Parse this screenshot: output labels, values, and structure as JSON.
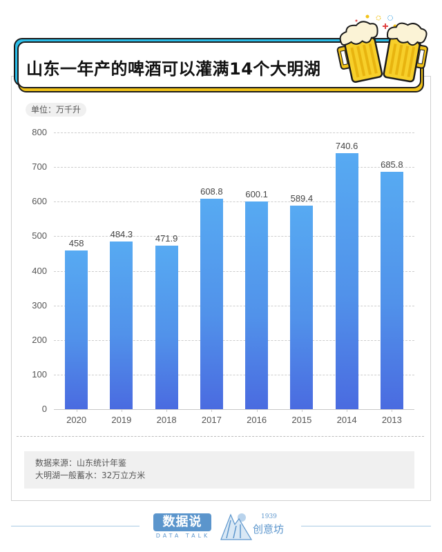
{
  "header": {
    "title": "山东一年产的啤酒可以灌满14个大明湖",
    "decoration": "beer-mugs-cheers-icon"
  },
  "unit_label": "单位：万千升",
  "colors": {
    "bar_top": "#57aaf2",
    "bar_bottom": "#4a6be0",
    "banner_cyan": "#2bbde8",
    "banner_yellow": "#f2c318",
    "logo_blue": "#5b95cc"
  },
  "chart_data": {
    "type": "bar",
    "title": "山东一年产的啤酒可以灌满14个大明湖",
    "xlabel": "",
    "ylabel": "单位：万千升",
    "categories": [
      "2020",
      "2019",
      "2018",
      "2017",
      "2016",
      "2015",
      "2014",
      "2013"
    ],
    "values": [
      458,
      484.3,
      471.9,
      608.8,
      600.1,
      589.4,
      740.6,
      685.8
    ],
    "value_labels": [
      "458",
      "484.3",
      "471.9",
      "608.8",
      "600.1",
      "589.4",
      "740.6",
      "685.8"
    ],
    "yticks": [
      "0",
      "100",
      "200",
      "300",
      "400",
      "500",
      "600",
      "700",
      "800"
    ],
    "ylim": [
      0,
      800
    ],
    "grid": true,
    "legend": "none"
  },
  "notes": {
    "source": "数据来源：山东统计年鉴",
    "lake_capacity": "大明湖一般蓄水：32万立方米"
  },
  "footer": {
    "logo1_main": "数据说",
    "logo1_sub": "DATA TALK",
    "logo2_year": "1939",
    "logo2_name": "创意坊"
  }
}
